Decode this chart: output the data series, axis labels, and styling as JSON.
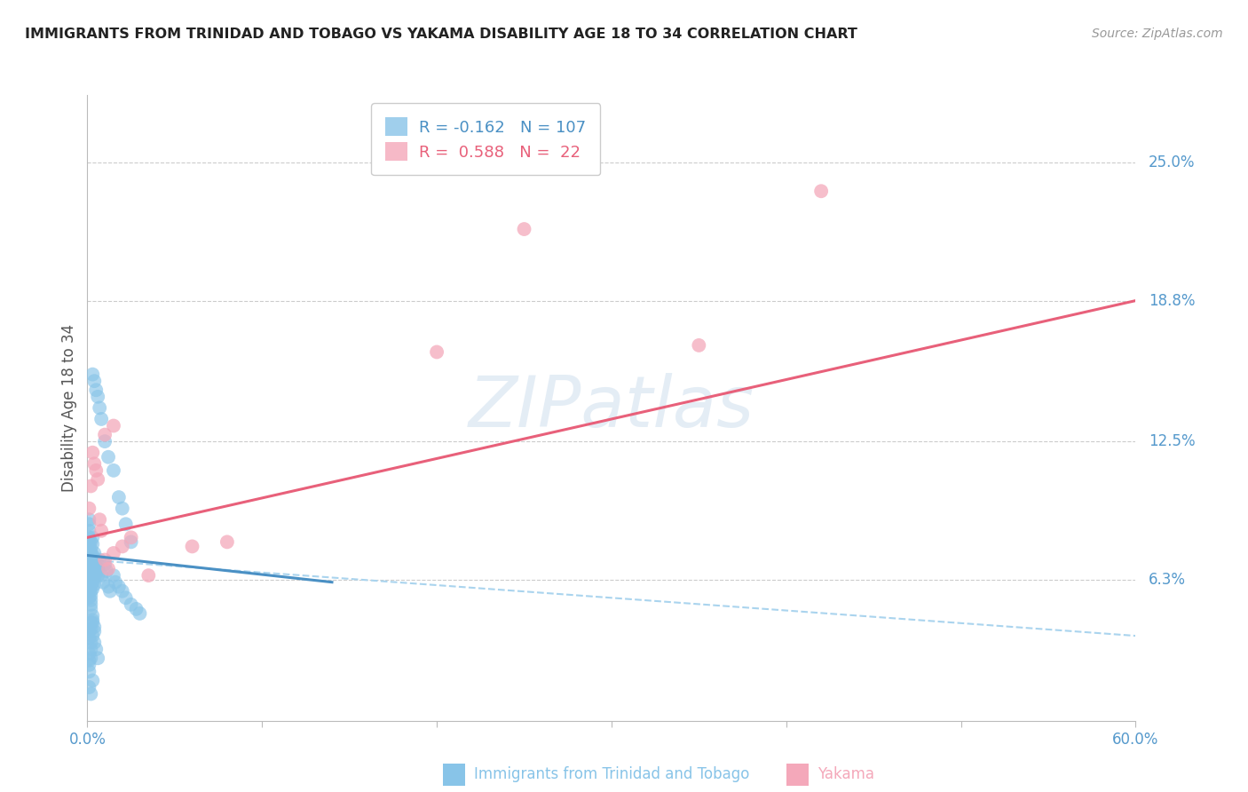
{
  "title": "IMMIGRANTS FROM TRINIDAD AND TOBAGO VS YAKAMA DISABILITY AGE 18 TO 34 CORRELATION CHART",
  "source": "Source: ZipAtlas.com",
  "ylabel": "Disability Age 18 to 34",
  "xlim": [
    0.0,
    0.6
  ],
  "ylim": [
    0.0,
    0.28
  ],
  "ytick_labels_right": [
    "25.0%",
    "18.8%",
    "12.5%",
    "6.3%"
  ],
  "ytick_values_right": [
    0.25,
    0.188,
    0.125,
    0.063
  ],
  "watermark_text": "ZIPatlas",
  "legend_blue_r": "-0.162",
  "legend_blue_n": "107",
  "legend_pink_r": "0.588",
  "legend_pink_n": "22",
  "blue_color": "#88c4e8",
  "pink_color": "#f4a8ba",
  "blue_line_color": "#4a90c4",
  "pink_line_color": "#e8607a",
  "blue_dash_color": "#aad4ee",
  "background_color": "#ffffff",
  "grid_color": "#cccccc",
  "title_color": "#222222",
  "axis_tick_color": "#5599cc",
  "ylabel_color": "#555555",
  "source_color": "#999999",
  "blue_scatter_x": [
    0.001,
    0.001,
    0.001,
    0.001,
    0.001,
    0.001,
    0.001,
    0.001,
    0.001,
    0.001,
    0.001,
    0.001,
    0.001,
    0.001,
    0.001,
    0.001,
    0.001,
    0.001,
    0.001,
    0.001,
    0.002,
    0.002,
    0.002,
    0.002,
    0.002,
    0.002,
    0.002,
    0.002,
    0.002,
    0.002,
    0.002,
    0.002,
    0.002,
    0.002,
    0.002,
    0.002,
    0.002,
    0.003,
    0.003,
    0.003,
    0.003,
    0.003,
    0.003,
    0.003,
    0.003,
    0.004,
    0.004,
    0.004,
    0.004,
    0.004,
    0.005,
    0.005,
    0.005,
    0.006,
    0.006,
    0.007,
    0.008,
    0.009,
    0.01,
    0.011,
    0.012,
    0.013,
    0.015,
    0.016,
    0.018,
    0.02,
    0.022,
    0.025,
    0.028,
    0.03,
    0.003,
    0.004,
    0.005,
    0.006,
    0.007,
    0.008,
    0.01,
    0.012,
    0.015,
    0.018,
    0.02,
    0.022,
    0.025,
    0.003,
    0.004,
    0.005,
    0.006,
    0.003,
    0.004,
    0.002,
    0.001,
    0.001,
    0.002,
    0.002,
    0.003,
    0.003,
    0.004,
    0.001,
    0.001,
    0.002,
    0.001,
    0.002,
    0.001,
    0.002,
    0.003,
    0.001,
    0.002
  ],
  "blue_scatter_y": [
    0.075,
    0.072,
    0.07,
    0.068,
    0.065,
    0.063,
    0.08,
    0.078,
    0.076,
    0.074,
    0.069,
    0.067,
    0.064,
    0.06,
    0.058,
    0.082,
    0.085,
    0.088,
    0.09,
    0.055,
    0.075,
    0.073,
    0.071,
    0.069,
    0.067,
    0.065,
    0.063,
    0.06,
    0.058,
    0.056,
    0.054,
    0.052,
    0.08,
    0.077,
    0.074,
    0.071,
    0.068,
    0.074,
    0.071,
    0.068,
    0.065,
    0.062,
    0.059,
    0.082,
    0.079,
    0.07,
    0.067,
    0.064,
    0.061,
    0.075,
    0.072,
    0.069,
    0.066,
    0.068,
    0.065,
    0.072,
    0.065,
    0.062,
    0.07,
    0.067,
    0.06,
    0.058,
    0.065,
    0.062,
    0.06,
    0.058,
    0.055,
    0.052,
    0.05,
    0.048,
    0.155,
    0.152,
    0.148,
    0.145,
    0.14,
    0.135,
    0.125,
    0.118,
    0.112,
    0.1,
    0.095,
    0.088,
    0.08,
    0.038,
    0.035,
    0.032,
    0.028,
    0.045,
    0.042,
    0.05,
    0.04,
    0.037,
    0.044,
    0.041,
    0.047,
    0.044,
    0.04,
    0.03,
    0.027,
    0.035,
    0.025,
    0.032,
    0.022,
    0.028,
    0.018,
    0.015,
    0.012
  ],
  "pink_scatter_x": [
    0.001,
    0.002,
    0.003,
    0.004,
    0.005,
    0.006,
    0.007,
    0.008,
    0.01,
    0.012,
    0.015,
    0.02,
    0.025,
    0.035,
    0.06,
    0.08,
    0.2,
    0.25,
    0.35,
    0.42,
    0.01,
    0.015
  ],
  "pink_scatter_y": [
    0.095,
    0.105,
    0.12,
    0.115,
    0.112,
    0.108,
    0.09,
    0.085,
    0.072,
    0.068,
    0.075,
    0.078,
    0.082,
    0.065,
    0.078,
    0.08,
    0.165,
    0.22,
    0.168,
    0.237,
    0.128,
    0.132
  ],
  "pink_trend_x": [
    0.0,
    0.6
  ],
  "pink_trend_y": [
    0.082,
    0.188
  ],
  "blue_solid_trend_x": [
    0.0,
    0.14
  ],
  "blue_solid_trend_y": [
    0.074,
    0.062
  ],
  "blue_dash_trend_x": [
    0.0,
    0.6
  ],
  "blue_dash_trend_y": [
    0.072,
    0.038
  ]
}
